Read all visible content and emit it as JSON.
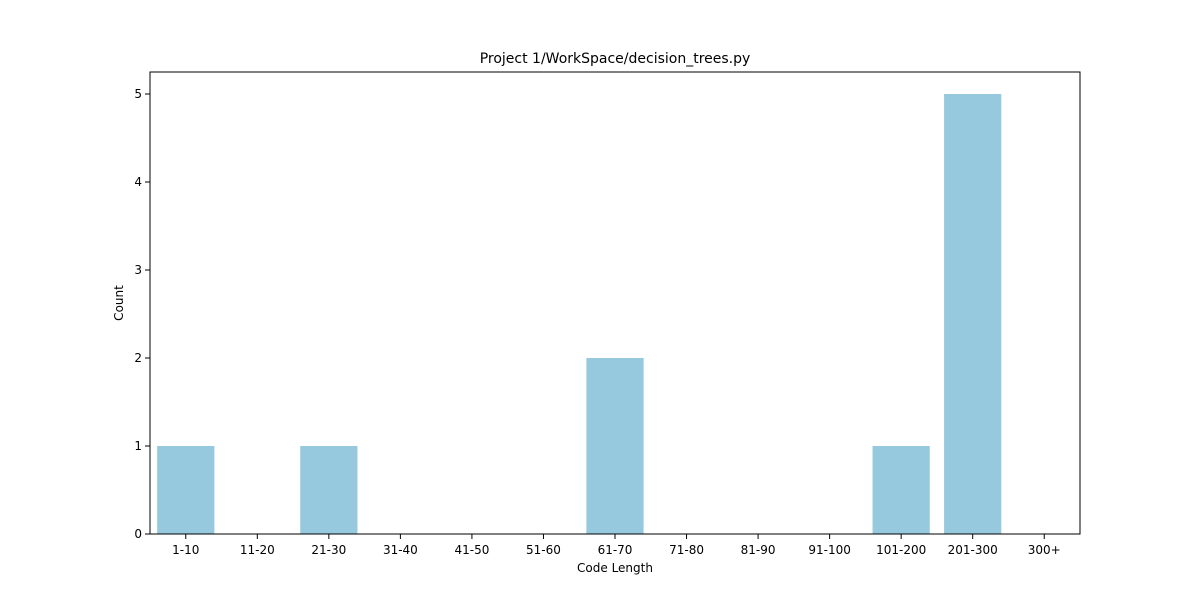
{
  "chart_data": {
    "type": "bar",
    "title": "Project 1/WorkSpace/decision_trees.py",
    "xlabel": "Code Length",
    "ylabel": "Count",
    "categories": [
      "1-10",
      "11-20",
      "21-30",
      "31-40",
      "41-50",
      "51-60",
      "61-70",
      "71-80",
      "81-90",
      "91-100",
      "101-200",
      "201-300",
      "300+"
    ],
    "values": [
      1,
      0,
      1,
      0,
      0,
      0,
      2,
      0,
      0,
      0,
      1,
      5,
      0
    ],
    "yticks": [
      0,
      1,
      2,
      3,
      4,
      5
    ],
    "ylim": [
      0,
      5.25
    ],
    "grid": false,
    "bar_color": "#96c9de"
  }
}
